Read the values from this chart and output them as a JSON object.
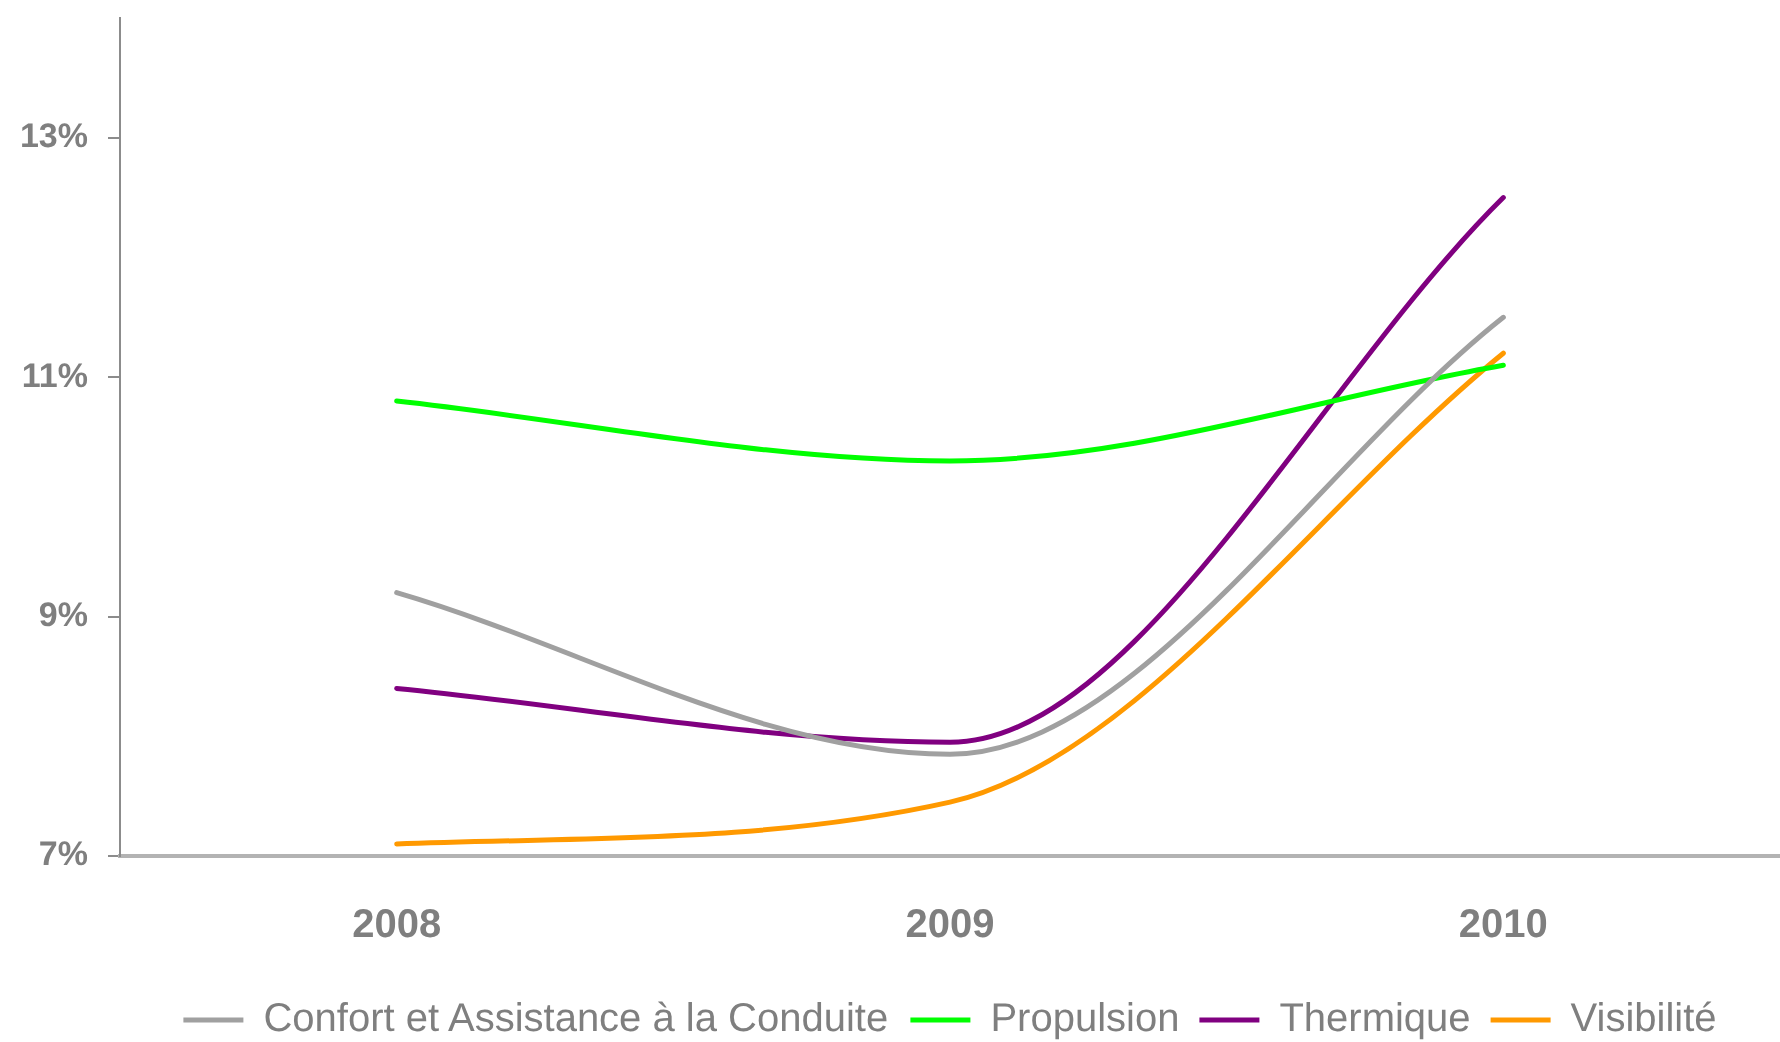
{
  "chart_data": {
    "type": "line",
    "categories": [
      "2008",
      "2009",
      "2010"
    ],
    "series": [
      {
        "name": "Confort et Assistance à la Conduite",
        "color": "#a0a0a0",
        "values": [
          9.2,
          7.85,
          11.5
        ]
      },
      {
        "name": "Propulsion",
        "color": "#00ff00",
        "values": [
          10.8,
          10.3,
          11.1
        ]
      },
      {
        "name": "Thermique",
        "color": "#800080",
        "values": [
          8.4,
          7.95,
          12.5
        ]
      },
      {
        "name": "Visibilité",
        "color": "#ff9900",
        "values": [
          7.1,
          7.45,
          11.2
        ]
      }
    ],
    "ylim": [
      7,
      14
    ],
    "yticks": [
      {
        "value": 7,
        "label": "7%"
      },
      {
        "value": 9,
        "label": "9%"
      },
      {
        "value": 11,
        "label": "11%"
      },
      {
        "value": 13,
        "label": "13%"
      }
    ],
    "legend": "bottom"
  }
}
